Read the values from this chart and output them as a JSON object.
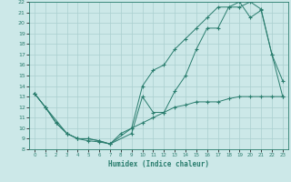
{
  "xlabel": "Humidex (Indice chaleur)",
  "xlim": [
    -0.5,
    23.5
  ],
  "ylim": [
    8,
    22
  ],
  "xticks": [
    0,
    1,
    2,
    3,
    4,
    5,
    6,
    7,
    8,
    9,
    10,
    11,
    12,
    13,
    14,
    15,
    16,
    17,
    18,
    19,
    20,
    21,
    22,
    23
  ],
  "yticks": [
    8,
    9,
    10,
    11,
    12,
    13,
    14,
    15,
    16,
    17,
    18,
    19,
    20,
    21,
    22
  ],
  "line_color": "#2a7d6e",
  "bg_color": "#cce8e8",
  "grid_color": "#aacfcf",
  "line1_x": [
    0,
    1,
    3,
    4,
    5,
    6,
    7,
    9,
    10,
    11,
    12,
    13,
    14,
    15,
    16,
    17,
    18,
    19,
    20,
    21,
    22,
    23
  ],
  "line1_y": [
    13.3,
    12,
    9.5,
    9,
    8.8,
    8.7,
    8.5,
    9.5,
    13,
    11.5,
    11.5,
    13.5,
    15,
    17.5,
    19.5,
    19.5,
    21.5,
    21.5,
    22,
    21.3,
    17,
    14.5
  ],
  "line2_x": [
    0,
    1,
    2,
    3,
    4,
    5,
    6,
    7,
    9,
    10,
    11,
    12,
    13,
    14,
    15,
    16,
    17,
    18,
    19,
    20,
    21,
    22,
    23
  ],
  "line2_y": [
    13.3,
    12,
    10.5,
    9.5,
    9,
    9,
    8.8,
    8.5,
    10,
    14,
    15.5,
    16,
    17.5,
    18.5,
    19.5,
    20.5,
    21.5,
    21.5,
    22,
    20.5,
    21.2,
    17,
    13
  ],
  "line3_x": [
    0,
    1,
    2,
    3,
    4,
    5,
    6,
    7,
    8,
    9,
    10,
    11,
    12,
    13,
    14,
    15,
    16,
    17,
    18,
    19,
    20,
    21,
    22,
    23
  ],
  "line3_y": [
    13.3,
    12,
    10.5,
    9.5,
    9,
    9,
    8.8,
    8.5,
    9.5,
    10,
    10.5,
    11,
    11.5,
    12,
    12.2,
    12.5,
    12.5,
    12.5,
    12.8,
    13,
    13,
    13,
    13,
    13
  ]
}
